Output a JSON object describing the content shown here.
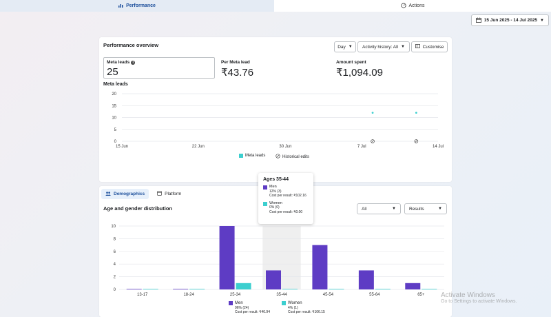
{
  "tabs": {
    "performance": "Performance",
    "actions": "Actions"
  },
  "date_range": "15 Jun 2025 - 14 Jul 2025",
  "overview": {
    "title": "Performance overview",
    "day_button": "Day",
    "activity_history": "Activity history: All",
    "customise": "Customise",
    "metrics": [
      {
        "label": "Meta leads",
        "value": "25"
      },
      {
        "label": "Per Meta lead",
        "value": "₹43.76"
      },
      {
        "label": "Amount spent",
        "value": "₹1,094.09"
      }
    ],
    "chart_title": "Meta leads"
  },
  "line_chart": {
    "type": "scatter",
    "x_ticks": [
      "15 Jun",
      "22 Jun",
      "30 Jun",
      "7 Jul",
      "14 Jul"
    ],
    "y_ticks": [
      "20",
      "15",
      "10",
      "5",
      "0"
    ],
    "ylim": [
      0,
      20
    ],
    "series": [
      {
        "name": "Meta leads",
        "points": [
          {
            "x": "8 Jul",
            "y": 12
          },
          {
            "x": "12 Jul",
            "y": 12
          }
        ]
      }
    ],
    "historical_edit_dates": [
      "8 Jul",
      "12 Jul"
    ],
    "legend": {
      "leads": "Meta leads",
      "edits": "Historical edits"
    }
  },
  "demographics": {
    "tab_demographics": "Demographics",
    "tab_platform": "Platform",
    "title": "Age and gender distribution",
    "filter_all": "All",
    "filter_results": "Results"
  },
  "chart_data": {
    "type": "bar",
    "categories": [
      "13-17",
      "18-24",
      "25-34",
      "35-44",
      "45-54",
      "55-64",
      "65+"
    ],
    "series": [
      {
        "name": "Men",
        "values": [
          0,
          0,
          10,
          3,
          7,
          3,
          1
        ]
      },
      {
        "name": "Women",
        "values": [
          0,
          0,
          1,
          0,
          0,
          0,
          0
        ]
      }
    ],
    "y_ticks": [
      "10",
      "8",
      "6",
      "4",
      "2",
      "0"
    ],
    "ylim": [
      0,
      10
    ],
    "highlighted": "35-44"
  },
  "tooltip": {
    "title": "Ages 35-44",
    "men": {
      "name": "Men",
      "share": "12% (3)",
      "cost": "Cost per result: ₹102.16"
    },
    "women": {
      "name": "Women",
      "share": "0% (0)",
      "cost": "Cost per result: ₹0.00"
    }
  },
  "bottom_legend": {
    "men": {
      "name": "Men",
      "share": "96% (24)",
      "cost": "Cost per result: ₹40.94"
    },
    "women": {
      "name": "Women",
      "share": "4% (1)",
      "cost": "Cost per result: ₹106.15"
    }
  },
  "watermark": {
    "line1": "Activate Windows",
    "line2": "Go to Settings to activate Windows."
  },
  "colors": {
    "men": "#5e3cc4",
    "women": "#3ccfcf",
    "accent": "#1b4e9b"
  }
}
